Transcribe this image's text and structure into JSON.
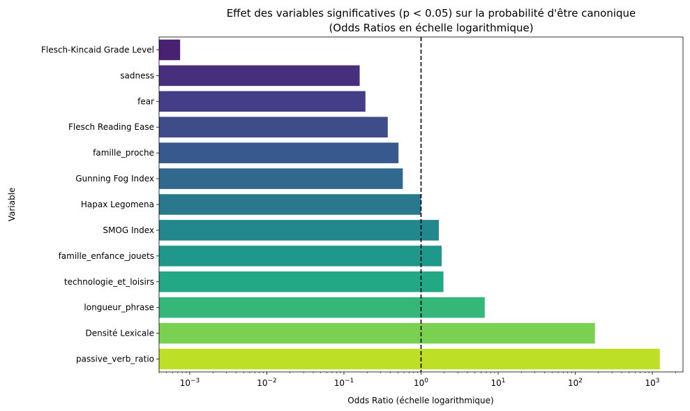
{
  "chart_data": {
    "type": "bar",
    "orientation": "horizontal",
    "title": "Effet des variables significatives (p < 0.05) sur la probabilité d'être canonique",
    "subtitle": "(Odds Ratios en échelle logarithmique)",
    "xlabel": "Odds Ratio (échelle logarithmique)",
    "ylabel": "Variable",
    "xscale": "log",
    "xlim": [
      0.0004,
      2500
    ],
    "xticks": [
      0.001,
      0.01,
      0.1,
      1,
      10,
      100,
      1000
    ],
    "xtick_labels": [
      {
        "base": "10",
        "exp": "−3"
      },
      {
        "base": "10",
        "exp": "−2"
      },
      {
        "base": "10",
        "exp": "−1"
      },
      {
        "base": "10",
        "exp": "0"
      },
      {
        "base": "10",
        "exp": "1"
      },
      {
        "base": "10",
        "exp": "2"
      },
      {
        "base": "10",
        "exp": "3"
      }
    ],
    "reference_line": {
      "x": 1,
      "style": "dashed",
      "color": "#000000"
    },
    "grid": false,
    "palette": "viridis",
    "categories": [
      "Flesch-Kincaid Grade Level",
      "sadness",
      "fear",
      "Flesch Reading Ease",
      "famille_proche",
      "Gunning Fog Index",
      "Hapax Legomena",
      "SMOG Index",
      "famille_enfance_jouets",
      "technologie_et_loisirs",
      "longueur_phrase",
      "Densité Lexicale",
      "passive_verb_ratio"
    ],
    "values": [
      0.00075,
      0.16,
      0.19,
      0.37,
      0.51,
      0.58,
      1.0,
      1.7,
      1.85,
      1.95,
      6.7,
      180,
      1250
    ],
    "colors": [
      "#482173",
      "#472f7d",
      "#433e85",
      "#3e4c8a",
      "#38598c",
      "#31688e",
      "#2a788e",
      "#23888e",
      "#1f988b",
      "#22a884",
      "#35b779",
      "#7ad151",
      "#bddf26"
    ]
  }
}
